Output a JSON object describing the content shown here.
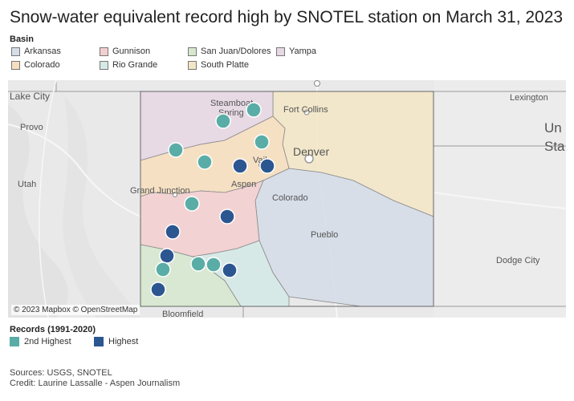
{
  "title": "Snow-water equivalent record high by SNOTEL station on March 31, 2023",
  "basin_legend": {
    "heading": "Basin",
    "items": [
      {
        "label": "Arkansas",
        "color": "#d6dde8"
      },
      {
        "label": "Colorado",
        "color": "#f6dfc0"
      },
      {
        "label": "Gunnison",
        "color": "#f3cfd0"
      },
      {
        "label": "Rio Grande",
        "color": "#d5e9e6"
      },
      {
        "label": "San Juan/Dolores",
        "color": "#d6e8cf"
      },
      {
        "label": "South Platte",
        "color": "#f3e6c6"
      },
      {
        "label": "Yampa",
        "color": "#e7d8e4"
      }
    ]
  },
  "records_legend": {
    "heading": "Records (1991-2020)",
    "items": [
      {
        "label": "2nd Highest",
        "color": "#5aada6"
      },
      {
        "label": "Highest",
        "color": "#2c5690"
      }
    ]
  },
  "map": {
    "attribution": "© 2023 Mapbox © OpenStreetMap",
    "labels": {
      "lake_city": "Lake City",
      "provo": "Provo",
      "utah": "Utah",
      "steamboat": "Steamboat",
      "springs": "Spring",
      "fort_collins": "Fort Collins",
      "denver": "Denver",
      "vail": "Vail",
      "aspen": "Aspen",
      "colorado": "Colorado",
      "grand_junction": "Grand Junction",
      "pueblo": "Pueblo",
      "lexington": "Lexington",
      "un": "Un",
      "sta": "Sta",
      "dodge_city": "Dodge City",
      "bloomfield": "Bloomfield"
    },
    "stations": [
      {
        "basin": "Yampa",
        "record": "2nd Highest"
      },
      {
        "basin": "Yampa",
        "record": "2nd Highest"
      },
      {
        "basin": "Yampa",
        "record": "2nd Highest"
      },
      {
        "basin": "Colorado",
        "record": "2nd Highest"
      },
      {
        "basin": "Colorado",
        "record": "2nd Highest"
      },
      {
        "basin": "Colorado",
        "record": "Highest"
      },
      {
        "basin": "Colorado",
        "record": "Highest"
      },
      {
        "basin": "Gunnison",
        "record": "2nd Highest"
      },
      {
        "basin": "Gunnison",
        "record": "Highest"
      },
      {
        "basin": "Gunnison",
        "record": "Highest"
      },
      {
        "basin": "San Juan/Dolores",
        "record": "Highest"
      },
      {
        "basin": "San Juan/Dolores",
        "record": "2nd Highest"
      },
      {
        "basin": "San Juan/Dolores",
        "record": "2nd Highest"
      },
      {
        "basin": "San Juan/Dolores",
        "record": "2nd Highest"
      },
      {
        "basin": "Rio Grande",
        "record": "Highest"
      },
      {
        "basin": "San Juan/Dolores",
        "record": "Highest"
      }
    ]
  },
  "footer": {
    "sources": "Sources: USGS, SNOTEL",
    "credit": "Credit: Laurine Lassalle - Aspen Journalism"
  }
}
